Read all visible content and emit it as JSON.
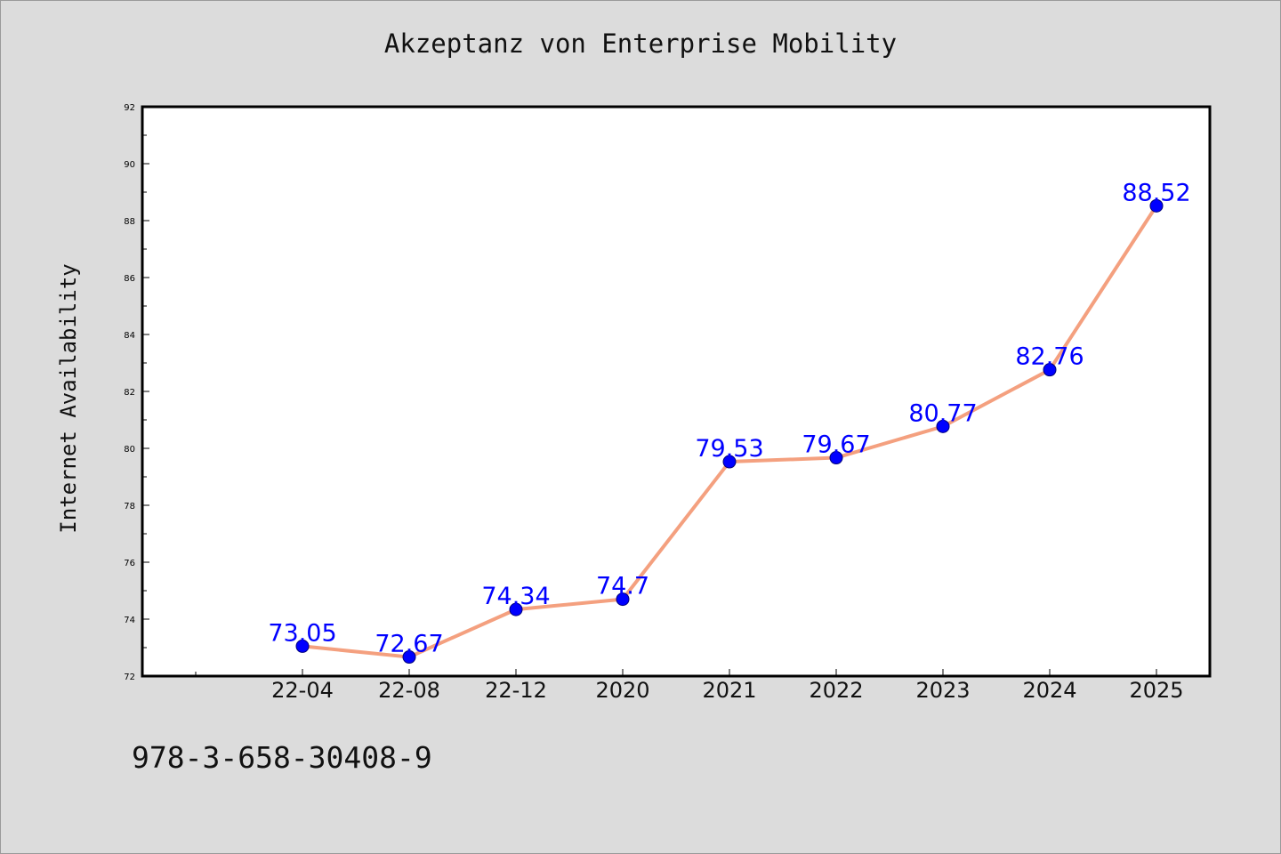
{
  "chart_data": {
    "type": "line",
    "title": "Akzeptanz von Enterprise Mobility",
    "xlabel": "",
    "ylabel": "Internet Availability",
    "categories": [
      "22-04",
      "22-08",
      "22-12",
      "2020",
      "2021",
      "2022",
      "2023",
      "2024",
      "2025"
    ],
    "series": [
      {
        "values": [
          73.05,
          72.67,
          74.34,
          74.7,
          79.53,
          79.67,
          80.77,
          82.76,
          88.52
        ],
        "data_labels": [
          "73.05",
          "72.67",
          "74.34",
          "74.7",
          "79.53",
          "79.67",
          "80.77",
          "82.76",
          "88.52"
        ],
        "line_color": "#f4a07f",
        "marker_color": "#0000ff",
        "label_color": "#0000ff"
      }
    ],
    "ylim": [
      72,
      92
    ],
    "yticks": [
      72,
      74,
      76,
      78,
      80,
      82,
      84,
      86,
      88,
      90,
      92
    ],
    "grid": false,
    "legend": "none"
  },
  "footer": {
    "identifier": "978-3-658-30408-9"
  },
  "colors": {
    "background": "#dcdcdc",
    "plot_background": "#ffffff",
    "axis": "#000000"
  }
}
